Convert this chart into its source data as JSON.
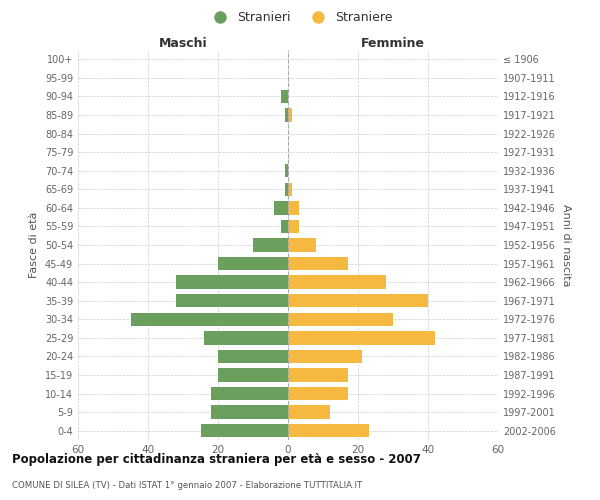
{
  "age_groups": [
    "100+",
    "95-99",
    "90-94",
    "85-89",
    "80-84",
    "75-79",
    "70-74",
    "65-69",
    "60-64",
    "55-59",
    "50-54",
    "45-49",
    "40-44",
    "35-39",
    "30-34",
    "25-29",
    "20-24",
    "15-19",
    "10-14",
    "5-9",
    "0-4"
  ],
  "birth_years": [
    "≤ 1906",
    "1907-1911",
    "1912-1916",
    "1917-1921",
    "1922-1926",
    "1927-1931",
    "1932-1936",
    "1937-1941",
    "1942-1946",
    "1947-1951",
    "1952-1956",
    "1957-1961",
    "1962-1966",
    "1967-1971",
    "1972-1976",
    "1977-1981",
    "1982-1986",
    "1987-1991",
    "1992-1996",
    "1997-2001",
    "2002-2006"
  ],
  "males": [
    0,
    0,
    2,
    1,
    0,
    0,
    1,
    1,
    4,
    2,
    10,
    20,
    32,
    32,
    45,
    24,
    20,
    20,
    22,
    22,
    25
  ],
  "females": [
    0,
    0,
    0,
    1,
    0,
    0,
    0,
    1,
    3,
    3,
    8,
    17,
    28,
    40,
    30,
    42,
    21,
    17,
    17,
    12,
    23
  ],
  "male_color": "#6a9f5e",
  "female_color": "#f5b942",
  "title": "Popolazione per cittadinanza straniera per età e sesso - 2007",
  "subtitle": "COMUNE DI SILEA (TV) - Dati ISTAT 1° gennaio 2007 - Elaborazione TUTTITALIA.IT",
  "xlabel_left": "Maschi",
  "xlabel_right": "Femmine",
  "ylabel_left": "Fasce di età",
  "ylabel_right": "Anni di nascita",
  "legend_stranieri": "Stranieri",
  "legend_straniere": "Straniere",
  "xlim": 60,
  "background_color": "#ffffff",
  "grid_color": "#cccccc",
  "legend_marker_color_m": "#6a9f5e",
  "legend_marker_color_f": "#f5b942"
}
